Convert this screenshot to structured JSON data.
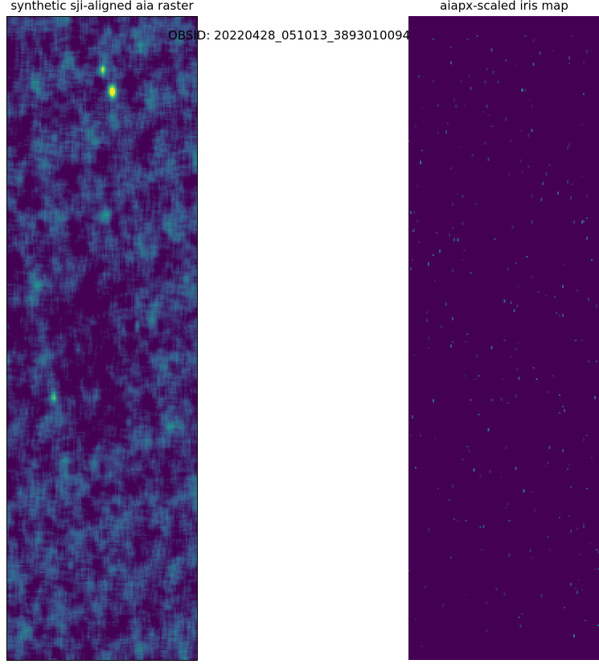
{
  "figure": {
    "left_title": "synthetic sji-aligned aia raster",
    "right_title": "aiapx-scaled iris map",
    "obsid_label": "OBSID: 20220428_051013_3893010094"
  },
  "colormap": {
    "name": "viridis",
    "stops": [
      "#440154",
      "#3b528b",
      "#21918c",
      "#5ec962",
      "#fde725"
    ]
  }
}
